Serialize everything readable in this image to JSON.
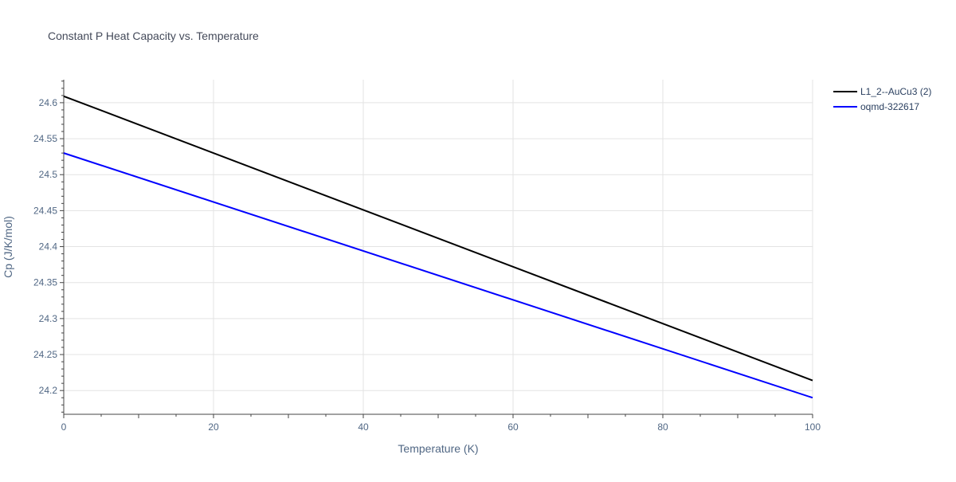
{
  "chart_data": {
    "type": "line",
    "title": "Constant P Heat Capacity vs. Temperature",
    "xlabel": "Temperature (K)",
    "ylabel": "Cp (J/K/mol)",
    "xlim": [
      0,
      100
    ],
    "ylim": [
      24.167,
      24.632
    ],
    "x_ticks": [
      0,
      20,
      40,
      60,
      80,
      100
    ],
    "y_ticks": [
      24.2,
      24.25,
      24.3,
      24.35,
      24.4,
      24.45,
      24.5,
      24.55,
      24.6
    ],
    "x_tick_labels": [
      "0",
      "20",
      "40",
      "60",
      "80",
      "100"
    ],
    "y_tick_labels": [
      "24.2",
      "24.25",
      "24.3",
      "24.35",
      "24.4",
      "24.45",
      "24.5",
      "24.55",
      "24.6"
    ],
    "grid": true,
    "legend_position": "top-right",
    "series": [
      {
        "name": "L1_2--AuCu3 (2)",
        "color": "#000000",
        "x": [
          0,
          100
        ],
        "y": [
          24.609,
          24.214
        ]
      },
      {
        "name": "oqmd-322617",
        "color": "#0000ff",
        "x": [
          0,
          100
        ],
        "y": [
          24.53,
          24.19
        ]
      }
    ]
  }
}
